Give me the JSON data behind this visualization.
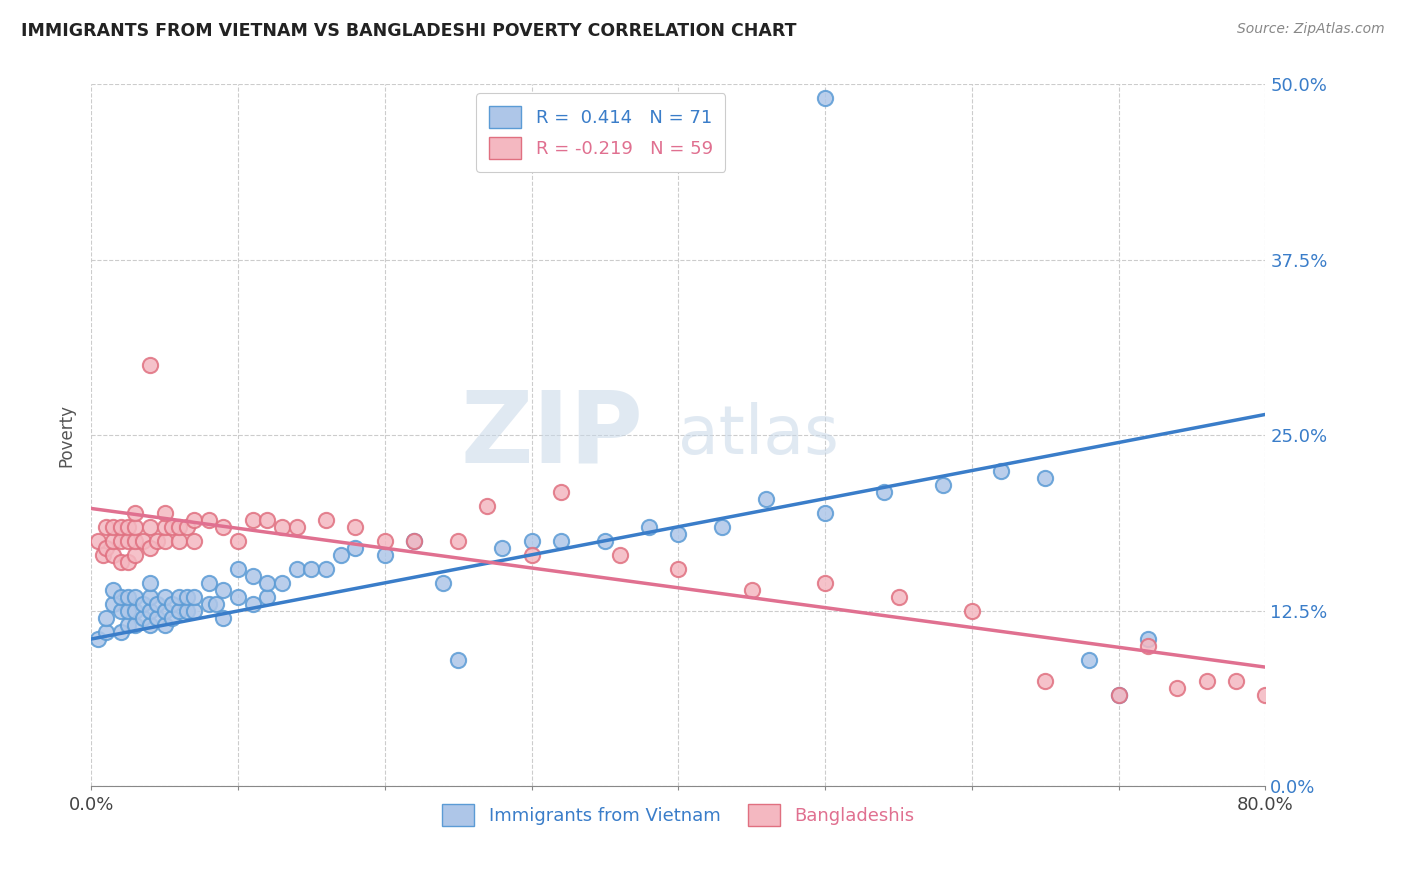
{
  "title": "IMMIGRANTS FROM VIETNAM VS BANGLADESHI POVERTY CORRELATION CHART",
  "source": "Source: ZipAtlas.com",
  "xlabel_labels": [
    "0.0%",
    "",
    "",
    "",
    "",
    "",
    "",
    "",
    "80.0%"
  ],
  "ylabel_labels": [
    "0.0%",
    "12.5%",
    "25.0%",
    "37.5%",
    "50.0%"
  ],
  "xlim": [
    0.0,
    0.8
  ],
  "ylim": [
    0.0,
    0.5
  ],
  "ylabel": "Poverty",
  "legend_label1": "Immigrants from Vietnam",
  "legend_label2": "Bangladeshis",
  "r1": 0.414,
  "n1": 71,
  "r2": -0.219,
  "n2": 59,
  "color_blue_fill": "#aec6e8",
  "color_blue_edge": "#5b9bd5",
  "color_pink_fill": "#f4b8c1",
  "color_pink_edge": "#e07080",
  "color_blue_line": "#3a7dc9",
  "color_pink_line": "#e07090",
  "color_blue_text": "#3a7dc9",
  "color_pink_text": "#e07090",
  "watermark_zip": "ZIP",
  "watermark_atlas": "atlas",
  "blue_scatter_x": [
    0.005,
    0.01,
    0.01,
    0.015,
    0.015,
    0.02,
    0.02,
    0.02,
    0.025,
    0.025,
    0.025,
    0.03,
    0.03,
    0.03,
    0.035,
    0.035,
    0.04,
    0.04,
    0.04,
    0.04,
    0.045,
    0.045,
    0.05,
    0.05,
    0.05,
    0.055,
    0.055,
    0.06,
    0.06,
    0.065,
    0.065,
    0.07,
    0.07,
    0.08,
    0.08,
    0.085,
    0.09,
    0.09,
    0.1,
    0.1,
    0.11,
    0.11,
    0.12,
    0.12,
    0.13,
    0.14,
    0.15,
    0.16,
    0.17,
    0.18,
    0.2,
    0.22,
    0.24,
    0.25,
    0.28,
    0.3,
    0.32,
    0.35,
    0.38,
    0.4,
    0.43,
    0.46,
    0.5,
    0.54,
    0.58,
    0.62,
    0.65,
    0.68,
    0.7,
    0.72,
    0.5
  ],
  "blue_scatter_y": [
    0.105,
    0.11,
    0.12,
    0.13,
    0.14,
    0.11,
    0.125,
    0.135,
    0.115,
    0.125,
    0.135,
    0.115,
    0.125,
    0.135,
    0.12,
    0.13,
    0.115,
    0.125,
    0.135,
    0.145,
    0.12,
    0.13,
    0.115,
    0.125,
    0.135,
    0.12,
    0.13,
    0.125,
    0.135,
    0.125,
    0.135,
    0.125,
    0.135,
    0.13,
    0.145,
    0.13,
    0.12,
    0.14,
    0.135,
    0.155,
    0.13,
    0.15,
    0.135,
    0.145,
    0.145,
    0.155,
    0.155,
    0.155,
    0.165,
    0.17,
    0.165,
    0.175,
    0.145,
    0.09,
    0.17,
    0.175,
    0.175,
    0.175,
    0.185,
    0.18,
    0.185,
    0.205,
    0.195,
    0.21,
    0.215,
    0.225,
    0.22,
    0.09,
    0.065,
    0.105,
    0.49
  ],
  "pink_scatter_x": [
    0.005,
    0.008,
    0.01,
    0.01,
    0.015,
    0.015,
    0.015,
    0.02,
    0.02,
    0.02,
    0.025,
    0.025,
    0.025,
    0.03,
    0.03,
    0.03,
    0.03,
    0.035,
    0.04,
    0.04,
    0.04,
    0.045,
    0.05,
    0.05,
    0.05,
    0.055,
    0.06,
    0.06,
    0.065,
    0.07,
    0.07,
    0.08,
    0.09,
    0.1,
    0.11,
    0.12,
    0.13,
    0.14,
    0.16,
    0.18,
    0.2,
    0.22,
    0.25,
    0.27,
    0.3,
    0.32,
    0.36,
    0.4,
    0.45,
    0.5,
    0.55,
    0.6,
    0.65,
    0.7,
    0.72,
    0.74,
    0.76,
    0.78,
    0.8
  ],
  "pink_scatter_y": [
    0.175,
    0.165,
    0.17,
    0.185,
    0.165,
    0.175,
    0.185,
    0.16,
    0.175,
    0.185,
    0.16,
    0.175,
    0.185,
    0.165,
    0.175,
    0.185,
    0.195,
    0.175,
    0.17,
    0.185,
    0.3,
    0.175,
    0.175,
    0.185,
    0.195,
    0.185,
    0.175,
    0.185,
    0.185,
    0.175,
    0.19,
    0.19,
    0.185,
    0.175,
    0.19,
    0.19,
    0.185,
    0.185,
    0.19,
    0.185,
    0.175,
    0.175,
    0.175,
    0.2,
    0.165,
    0.21,
    0.165,
    0.155,
    0.14,
    0.145,
    0.135,
    0.125,
    0.075,
    0.065,
    0.1,
    0.07,
    0.075,
    0.075,
    0.065
  ],
  "blue_line_x": [
    0.0,
    0.8
  ],
  "blue_line_y": [
    0.105,
    0.265
  ],
  "pink_line_x": [
    0.0,
    0.8
  ],
  "pink_line_y": [
    0.198,
    0.085
  ],
  "grid_color": "#cccccc",
  "background_color": "#ffffff"
}
